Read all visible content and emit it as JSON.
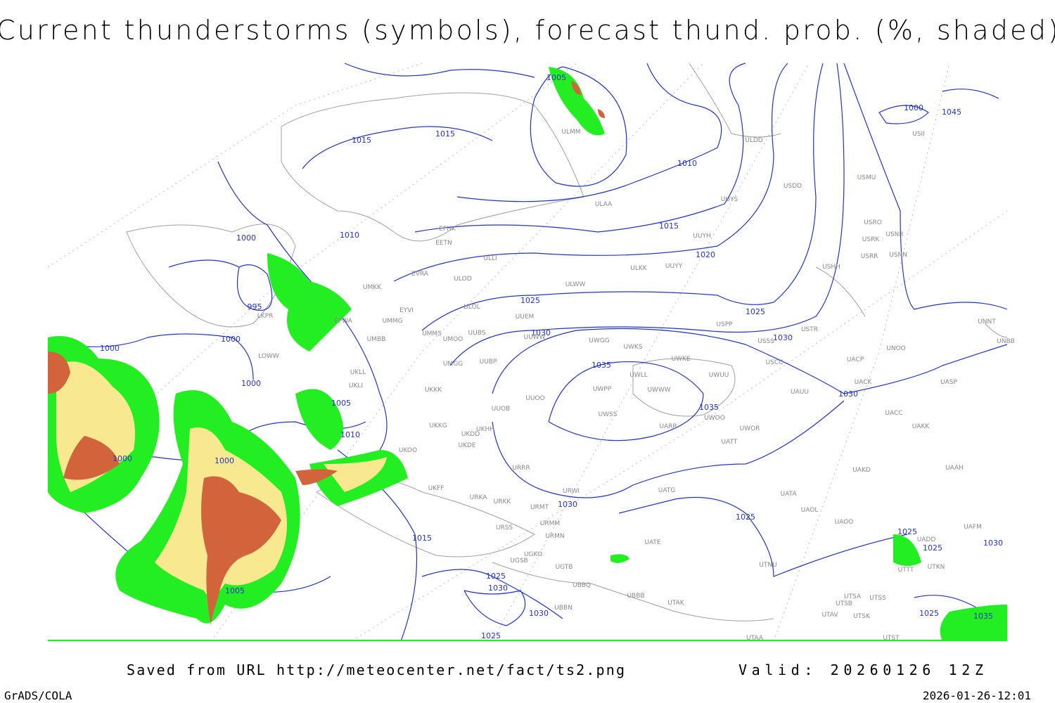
{
  "header": {
    "title": "Current thunderstorms (symbols), forecast thund. prob. (%, shaded)"
  },
  "map": {
    "isobar_labels": [
      1005,
      1015,
      1015,
      1010,
      1015,
      1010,
      1000,
      1020,
      1025,
      995,
      1025,
      1030,
      1030,
      1000,
      1000,
      1035,
      1000,
      1005,
      1035,
      1030,
      1010,
      1000,
      1000,
      1030,
      1025,
      1025,
      1030,
      1025,
      1015,
      1005,
      1030,
      1025,
      1030,
      1025,
      1025,
      1035,
      1000,
      1045
    ],
    "stations": [
      "ULMM",
      "ULDD",
      "USDD",
      "USMU",
      "UUYS",
      "ULAA",
      "EFHK",
      "EETN",
      "UUYH",
      "USRO",
      "USRK",
      "USNR",
      "USRR",
      "USNN",
      "ULLI",
      "ULKK",
      "UUYY",
      "USHH",
      "EVRA",
      "ULOD",
      "ULWW",
      "UMKK",
      "EYVI",
      "ULOL",
      "UUEM",
      "UMMG",
      "USPP",
      "USTR",
      "UNNT",
      "UMMS",
      "UMOO",
      "UUBS",
      "UUWW",
      "UWGG",
      "UWKS",
      "USSS",
      "UNOO",
      "UNBB",
      "UMBB",
      "UKLL",
      "UKLI",
      "UMGG",
      "UUBP",
      "UWKE",
      "USCC",
      "UACP",
      "UWLL",
      "UWUU",
      "UACK",
      "UASP",
      "UWPP",
      "UWWW",
      "UAUU",
      "UKKK",
      "UUOO",
      "UUOB",
      "UWSS",
      "UWOO",
      "UACC",
      "UKKG",
      "UKDD",
      "UKHH",
      "UARR",
      "UWOR",
      "UAKK",
      "UKDE",
      "UATT",
      "URRR",
      "UAKD",
      "UAAH",
      "UKOO",
      "UKFF",
      "URWI",
      "UATG",
      "UATA",
      "URKA",
      "URKK",
      "URMT",
      "UAOL",
      "URSS",
      "URMM",
      "UAOO",
      "UAFM",
      "URMN",
      "UATE",
      "UADD",
      "UGKO",
      "UGSB",
      "UGTB",
      "UTNU",
      "UTTT",
      "UTKN",
      "UBBQ",
      "UBBB",
      "UTSA",
      "UTSS",
      "UTSB",
      "UTAK",
      "UBBN",
      "UTAV",
      "UTSK",
      "UTAA",
      "UTST",
      "LKPR",
      "LOWW",
      "EPWA",
      "USII"
    ]
  },
  "footer": {
    "source": "Saved from URL http://meteocenter.net/fact/ts2.png",
    "valid": "Valid: 20260126 12Z",
    "software": "GrADS/COLA",
    "timestamp": "2026-01-26-12:01"
  }
}
